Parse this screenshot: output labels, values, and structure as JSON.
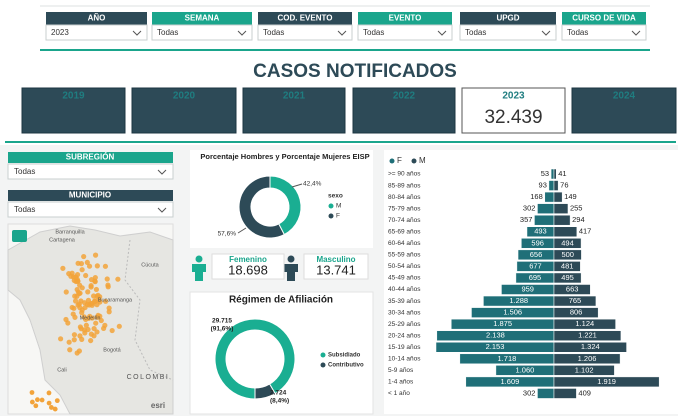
{
  "filters": [
    {
      "label": "AÑO",
      "value": "2023"
    },
    {
      "label": "SEMANA",
      "value": "Todas"
    },
    {
      "label": "COD. EVENTO",
      "value": "Todas"
    },
    {
      "label": "EVENTO",
      "value": "Todas"
    },
    {
      "label": "UPGD",
      "value": "Todas"
    },
    {
      "label": "CURSO DE VIDA",
      "value": "Todas"
    }
  ],
  "header": {
    "title": "CASOS NOTIFICADOS"
  },
  "year_cards": [
    {
      "year": "2019"
    },
    {
      "year": "2020"
    },
    {
      "year": "2021"
    },
    {
      "year": "2022"
    },
    {
      "year": "2023",
      "value": "32.439"
    },
    {
      "year": "2024"
    }
  ],
  "side_filters": [
    {
      "label": "SUBREGIÓN",
      "value": "Todas"
    },
    {
      "label": "MUNICIPIO",
      "value": "Todas"
    }
  ],
  "map": {
    "labels": [
      "Barranquilla",
      "Cartagena",
      "Cúcuta",
      "Bucaramanga",
      "Medellín",
      "Bogotá",
      "Cali",
      "COLOMBI"
    ],
    "attribution": "esri"
  },
  "sex_cards": [
    {
      "label": "Femenino",
      "value": "18.698"
    },
    {
      "label": "Masculino",
      "value": "13.741"
    }
  ],
  "chart_data": [
    {
      "type": "donut",
      "title": "Porcentaje Hombres y Porcentaje Mujeres EISP",
      "legend_title": "sexo",
      "categories": [
        "M",
        "F"
      ],
      "values": [
        42.4,
        57.6
      ],
      "value_labels": [
        "42,4%",
        "57,6%"
      ],
      "colors": [
        "#1aae92",
        "#2d4a57"
      ]
    },
    {
      "type": "donut",
      "title": "Régimen de Afiliación",
      "categories": [
        "Subsidiado",
        "Contributivo"
      ],
      "values": [
        29715,
        2724
      ],
      "value_labels": [
        "29.715",
        "2.724"
      ],
      "percent_labels": [
        "(91,6%)",
        "(8,4%)"
      ],
      "colors": [
        "#1aae92",
        "#2d4a57"
      ]
    },
    {
      "type": "pyramid",
      "categories": [
        ">= 90 años",
        "85-89 años",
        "80-84 años",
        "75-79 años",
        "70-74 años",
        "65-69 años",
        "60-64 años",
        "55-59 años",
        "50-54 años",
        "45-49 años",
        "40-44 años",
        "35-39 años",
        "30-34 años",
        "25-29 años",
        "20-24 años",
        "15-19 años",
        "10-14 años",
        "5-9 años",
        "1-4 años",
        "< 1 año"
      ],
      "series": [
        {
          "name": "F",
          "color": "#1f6f78",
          "values": [
            53,
            93,
            168,
            302,
            357,
            493,
            596,
            656,
            677,
            695,
            959,
            1288,
            1506,
            1875,
            2138,
            2153,
            1718,
            1060,
            1609,
            302
          ],
          "value_labels": [
            "53",
            "93",
            "168",
            "302",
            "357",
            "493",
            "596",
            "656",
            "677",
            "695",
            "959",
            "1.288",
            "1.506",
            "1.875",
            "2.138",
            "2.153",
            "1.718",
            "1.060",
            "1.609",
            "302"
          ]
        },
        {
          "name": "M",
          "color": "#2d4a57",
          "values": [
            41,
            76,
            149,
            255,
            294,
            417,
            494,
            500,
            481,
            495,
            663,
            765,
            806,
            1124,
            1221,
            1324,
            1206,
            1102,
            1919,
            409
          ],
          "value_labels": [
            "41",
            "76",
            "149",
            "255",
            "294",
            "417",
            "494",
            "500",
            "481",
            "495",
            "663",
            "765",
            "806",
            "1.124",
            "1.221",
            "1.324",
            "1.206",
            "1.102",
            "1.919",
            "409"
          ]
        }
      ]
    }
  ]
}
